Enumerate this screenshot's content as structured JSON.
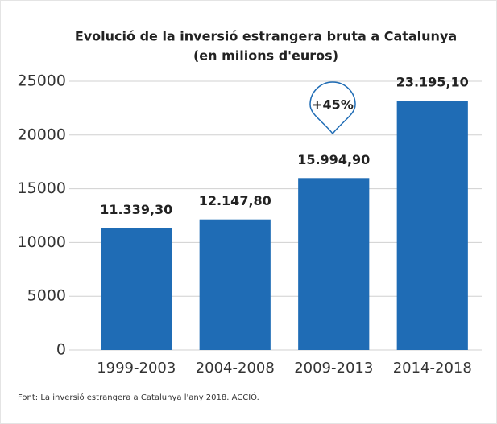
{
  "chart_data": {
    "type": "bar",
    "title": "Evolució de la inversió estrangera bruta a Catalunya",
    "subtitle": "(en milions d'euros)",
    "categories": [
      "1999-2003",
      "2004-2008",
      "2009-2013",
      "2014-2018"
    ],
    "values": [
      11339.3,
      12147.8,
      15994.9,
      23195.1
    ],
    "value_labels": [
      "11.339,30",
      "12.147,80",
      "15.994,90",
      "23.195,10"
    ],
    "color": "#1f6cb5",
    "ylim": [
      0,
      25000
    ],
    "yticks": [
      0,
      5000,
      10000,
      15000,
      20000,
      25000
    ],
    "grid": true,
    "annotation": "+45%",
    "source": "Font: La inversió estrangera a Catalunya l'any 2018. ACCIÓ."
  }
}
